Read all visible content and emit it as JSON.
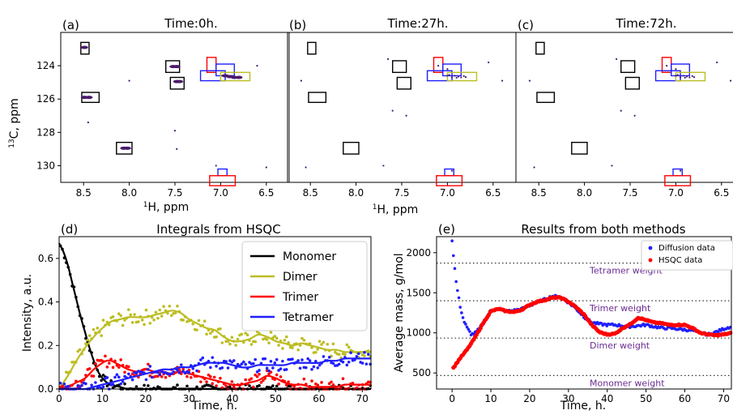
{
  "colors": {
    "monomer": "#000000",
    "dimer": "#bcbd22",
    "trimer": "#ff0000",
    "tetramer": "#1f1fff",
    "box_black": "#000000",
    "box_red": "#ff0000",
    "box_blue": "#1f1fff",
    "box_yellow": "#bcbd22",
    "peak": "#4b1a6b",
    "ref_label": "#6a2c91"
  },
  "nmr_panels": {
    "xlabel_html": "1H, ppm",
    "ylabel": "13C, ppm",
    "x_ticks": [
      "8.5",
      "8.0",
      "7.5",
      "7.0",
      "6.5"
    ],
    "y_ticks": [
      "124",
      "126",
      "128",
      "130"
    ],
    "xlim": [
      8.75,
      6.25
    ],
    "ylim": [
      131.0,
      122.0
    ],
    "panels": [
      {
        "letter": "(a)",
        "title": "Time:0h.",
        "peaks": "strong"
      },
      {
        "letter": "(b)",
        "title": "Time:27h.",
        "peaks": "weak"
      },
      {
        "letter": "(c)",
        "title": "Time:72h.",
        "peaks": "weak"
      }
    ],
    "boxes": [
      {
        "color": "black",
        "x0": 8.53,
        "x1": 8.44,
        "y0": 122.6,
        "y1": 123.3
      },
      {
        "color": "black",
        "x0": 8.52,
        "x1": 8.33,
        "y0": 125.6,
        "y1": 126.2
      },
      {
        "color": "black",
        "x0": 8.14,
        "x1": 7.97,
        "y0": 128.6,
        "y1": 129.3
      },
      {
        "color": "black",
        "x0": 7.6,
        "x1": 7.45,
        "y0": 123.7,
        "y1": 124.4
      },
      {
        "color": "black",
        "x0": 7.55,
        "x1": 7.4,
        "y0": 124.7,
        "y1": 125.4
      },
      {
        "color": "red",
        "x0": 7.15,
        "x1": 7.05,
        "y0": 123.5,
        "y1": 124.4
      },
      {
        "color": "blue",
        "x0": 7.05,
        "x1": 6.85,
        "y0": 123.9,
        "y1": 124.6
      },
      {
        "color": "blue",
        "x0": 7.22,
        "x1": 6.95,
        "y0": 124.3,
        "y1": 124.9
      },
      {
        "color": "yellow",
        "x0": 7.0,
        "x1": 6.68,
        "y0": 124.4,
        "y1": 124.9
      },
      {
        "color": "blue",
        "x0": 7.03,
        "x1": 6.93,
        "y0": 130.2,
        "y1": 130.6
      },
      {
        "color": "red",
        "x0": 7.12,
        "x1": 6.84,
        "y0": 130.6,
        "y1": 131.2
      }
    ],
    "peaks_strong": [
      [
        8.49,
        122.9
      ],
      [
        8.49,
        125.9
      ],
      [
        8.44,
        125.9
      ],
      [
        8.06,
        128.95
      ],
      [
        8.02,
        128.95
      ],
      [
        7.52,
        124.05
      ],
      [
        7.48,
        124.05
      ],
      [
        7.48,
        124.95
      ],
      [
        7.45,
        124.95
      ],
      [
        6.95,
        124.6
      ],
      [
        6.85,
        124.7
      ],
      [
        6.9,
        124.65
      ],
      [
        6.8,
        124.7
      ],
      [
        7.5,
        127.9
      ],
      [
        8.45,
        127.4
      ],
      [
        8.0,
        124.9
      ],
      [
        7.48,
        129.0
      ],
      [
        6.6,
        124.0
      ],
      [
        7.05,
        130.0
      ],
      [
        6.5,
        130.1
      ]
    ],
    "peaks_weak": [
      [
        6.98,
        124.55
      ],
      [
        6.92,
        124.6
      ],
      [
        6.88,
        124.65
      ],
      [
        6.85,
        124.7
      ],
      [
        6.8,
        124.68
      ],
      [
        6.95,
        124.7
      ],
      [
        6.9,
        124.72
      ],
      [
        6.82,
        124.62
      ],
      [
        7.0,
        124.6
      ],
      [
        7.1,
        124.0
      ],
      [
        7.6,
        126.7
      ],
      [
        6.95,
        130.3
      ],
      [
        7.7,
        130.0
      ],
      [
        8.6,
        124.9
      ],
      [
        6.4,
        124.9
      ],
      [
        7.45,
        127.0
      ],
      [
        7.0,
        124.2
      ],
      [
        6.55,
        123.8
      ],
      [
        7.65,
        123.6
      ],
      [
        8.55,
        130.1
      ]
    ]
  },
  "chart_data": [
    {
      "type": "scatter",
      "note": "3 NMR HSQC spectra panels, points = peaks, rectangles = integration regions",
      "panels": [
        "(a) Time:0h.",
        "(b) Time:27h.",
        "(c) Time:72h."
      ]
    },
    {
      "type": "line",
      "letter": "(d)",
      "title": "Integrals from HSQC",
      "xlabel": "Time, h.",
      "ylabel": "Intensity, a.u.",
      "xlim": [
        0,
        72
      ],
      "ylim": [
        0,
        0.7
      ],
      "x_ticks": [
        "0",
        "10",
        "20",
        "30",
        "40",
        "50",
        "60",
        "70"
      ],
      "y_ticks": [
        "0.0",
        "0.2",
        "0.4",
        "0.6"
      ],
      "legend": "top-right",
      "series": [
        {
          "name": "Monomer",
          "color": "#000000",
          "x": [
            0,
            1,
            2,
            3,
            4,
            5,
            6,
            7,
            8,
            9,
            10,
            11,
            12,
            14,
            16,
            20,
            30,
            40,
            50,
            60,
            72
          ],
          "y": [
            0.67,
            0.63,
            0.57,
            0.49,
            0.41,
            0.33,
            0.26,
            0.19,
            0.13,
            0.08,
            0.05,
            0.03,
            0.02,
            0.01,
            0.0,
            0.0,
            0.0,
            0.0,
            0.0,
            0.0,
            0.0
          ]
        },
        {
          "name": "Dimer",
          "color": "#bcbd22",
          "x": [
            0,
            2,
            4,
            6,
            8,
            10,
            12,
            14,
            16,
            18,
            20,
            22,
            24,
            26,
            28,
            30,
            32,
            34,
            36,
            38,
            40,
            42,
            44,
            46,
            48,
            50,
            52,
            54,
            56,
            58,
            60,
            62,
            64,
            66,
            68,
            70,
            72
          ],
          "y": [
            0.0,
            0.06,
            0.13,
            0.19,
            0.24,
            0.28,
            0.31,
            0.32,
            0.33,
            0.33,
            0.33,
            0.34,
            0.35,
            0.36,
            0.35,
            0.32,
            0.3,
            0.28,
            0.27,
            0.24,
            0.22,
            0.22,
            0.23,
            0.25,
            0.24,
            0.22,
            0.21,
            0.2,
            0.21,
            0.2,
            0.19,
            0.18,
            0.18,
            0.17,
            0.17,
            0.17,
            0.17
          ]
        },
        {
          "name": "Trimer",
          "color": "#ff0000",
          "x": [
            0,
            2,
            4,
            6,
            8,
            10,
            11,
            12,
            13,
            14,
            16,
            18,
            20,
            22,
            24,
            26,
            28,
            30,
            32,
            34,
            36,
            38,
            40,
            42,
            44,
            46,
            48,
            50,
            52,
            54,
            56,
            58,
            60,
            62,
            64,
            66,
            68,
            70,
            72
          ],
          "y": [
            0.0,
            0.01,
            0.03,
            0.05,
            0.09,
            0.12,
            0.13,
            0.13,
            0.12,
            0.11,
            0.09,
            0.08,
            0.09,
            0.08,
            0.08,
            0.07,
            0.08,
            0.07,
            0.06,
            0.05,
            0.04,
            0.03,
            0.02,
            0.02,
            0.03,
            0.04,
            0.06,
            0.05,
            0.03,
            0.02,
            0.02,
            0.01,
            0.01,
            0.01,
            0.01,
            0.02,
            0.02,
            0.02,
            0.02
          ]
        },
        {
          "name": "Tetramer",
          "color": "#1f1fff",
          "x": [
            0,
            4,
            6,
            8,
            10,
            12,
            14,
            16,
            18,
            20,
            22,
            24,
            26,
            28,
            30,
            32,
            34,
            36,
            38,
            40,
            42,
            44,
            46,
            48,
            50,
            52,
            54,
            56,
            58,
            60,
            62,
            64,
            66,
            68,
            70,
            72
          ],
          "y": [
            0.0,
            0.0,
            0.0,
            0.01,
            0.02,
            0.03,
            0.04,
            0.05,
            0.06,
            0.07,
            0.08,
            0.09,
            0.09,
            0.1,
            0.1,
            0.11,
            0.12,
            0.12,
            0.12,
            0.11,
            0.1,
            0.1,
            0.11,
            0.11,
            0.11,
            0.11,
            0.12,
            0.12,
            0.12,
            0.12,
            0.13,
            0.13,
            0.14,
            0.14,
            0.14,
            0.14
          ]
        }
      ]
    },
    {
      "type": "line",
      "letter": "(e)",
      "title": "Results from both methods",
      "xlabel": "Time, h.",
      "ylabel": "Average mass, g/mol",
      "xlim": [
        -4,
        72
      ],
      "ylim": [
        300,
        2200
      ],
      "x_ticks": [
        "0",
        "10",
        "20",
        "30",
        "40",
        "50",
        "60",
        "70"
      ],
      "y_ticks": [
        "500",
        "1000",
        "1500",
        "2000"
      ],
      "legend": "top-right",
      "reference_lines": [
        {
          "label": "Tetramer weight",
          "value": 1870
        },
        {
          "label": "Trimer weight",
          "value": 1400
        },
        {
          "label": "Dimer weight",
          "value": 935
        },
        {
          "label": "Monomer weight",
          "value": 468
        }
      ],
      "series": [
        {
          "name": "Diffusion data",
          "color": "#1f1fff",
          "x": [
            0,
            0.5,
            1,
            1.5,
            2,
            2.5,
            3,
            4,
            5,
            6,
            7,
            8,
            9,
            10,
            12,
            14,
            16,
            18,
            20,
            22,
            24,
            26,
            28,
            30,
            32,
            34,
            36,
            38,
            40,
            42,
            44,
            46,
            48,
            50,
            52,
            54,
            56,
            58,
            60,
            62,
            64,
            66,
            68,
            70,
            72
          ],
          "y": [
            2150,
            1900,
            1650,
            1500,
            1350,
            1250,
            1150,
            1050,
            980,
            1000,
            1050,
            1120,
            1200,
            1280,
            1300,
            1270,
            1280,
            1300,
            1340,
            1380,
            1420,
            1460,
            1440,
            1380,
            1300,
            1200,
            1130,
            1110,
            1100,
            1100,
            1090,
            1080,
            1090,
            1100,
            1080,
            1060,
            1060,
            1050,
            1040,
            1030,
            1000,
            980,
            1010,
            1050,
            1080
          ]
        },
        {
          "name": "HSQC data",
          "color": "#ff0000",
          "x": [
            0,
            2,
            4,
            6,
            8,
            10,
            12,
            14,
            16,
            18,
            20,
            22,
            24,
            26,
            28,
            30,
            32,
            34,
            36,
            38,
            40,
            42,
            44,
            46,
            48,
            50,
            52,
            54,
            56,
            58,
            60,
            62,
            64,
            66,
            68,
            70,
            72
          ],
          "y": [
            540,
            680,
            800,
            950,
            1120,
            1270,
            1300,
            1270,
            1260,
            1290,
            1350,
            1390,
            1410,
            1440,
            1440,
            1390,
            1320,
            1230,
            1100,
            1010,
            980,
            990,
            1060,
            1110,
            1190,
            1160,
            1130,
            1120,
            1100,
            1100,
            1100,
            1060,
            1000,
            980,
            970,
            980,
            1000
          ]
        }
      ]
    }
  ]
}
